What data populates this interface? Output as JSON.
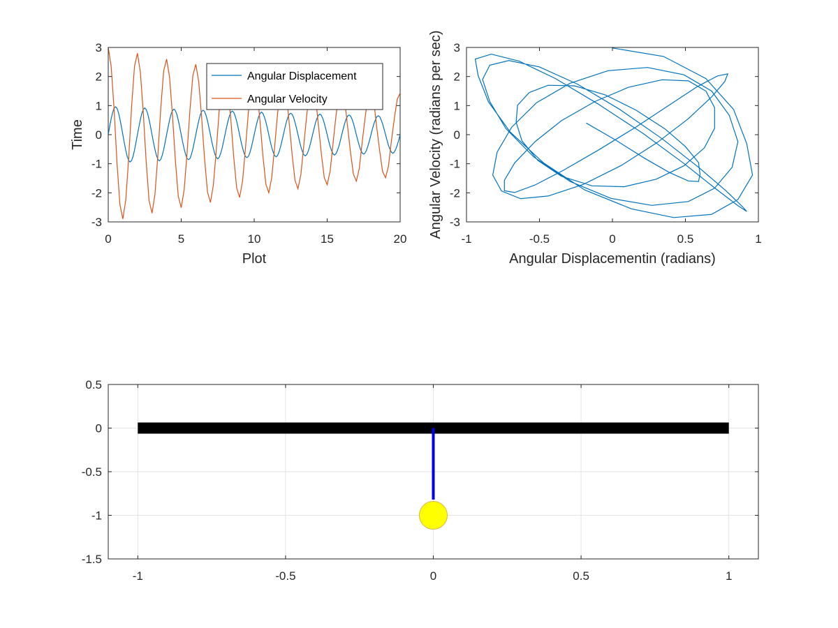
{
  "chart_data": [
    {
      "type": "line",
      "title": "",
      "xlabel": "Plot",
      "ylabel": "Time",
      "xlim": [
        0,
        20
      ],
      "ylim": [
        -3,
        3
      ],
      "xticks": [
        "0",
        "5",
        "10",
        "15",
        "20"
      ],
      "yticks": [
        "-3",
        "-2",
        "-1",
        "0",
        "1",
        "2",
        "3"
      ],
      "grid": false,
      "legend_position": "top-right",
      "series": [
        {
          "name": "Angular Displacement",
          "color": "#0072bd",
          "x": [
            0,
            0.1,
            0.2,
            0.3,
            0.4,
            0.5,
            0.6,
            0.7,
            0.8,
            0.9,
            1.0,
            1.1,
            1.2,
            1.3,
            1.4,
            1.5,
            1.6,
            1.7,
            1.8,
            1.9,
            2.0,
            2.1,
            2.2,
            2.3,
            2.4,
            2.5,
            2.6,
            2.7,
            2.8,
            2.9,
            3.0,
            3.1,
            3.2,
            3.3,
            3.4,
            3.5,
            3.6,
            3.7,
            3.8,
            3.9,
            4.0,
            4.1,
            4.2,
            4.3,
            4.4,
            4.5,
            4.6,
            4.7,
            4.8,
            4.9,
            5.0,
            5.1,
            5.2,
            5.3,
            5.4,
            5.5,
            5.6,
            5.7,
            5.8,
            5.9,
            6.0,
            6.1,
            6.2,
            6.3,
            6.4,
            6.5,
            6.6,
            6.7,
            6.8,
            6.9,
            7.0,
            7.1,
            7.2,
            7.3,
            7.4,
            7.5,
            7.6,
            7.7,
            7.8,
            7.9,
            8.0,
            8.1,
            8.2,
            8.3,
            8.4,
            8.5,
            8.6,
            8.7,
            8.8,
            8.9,
            9.0,
            9.1,
            9.2,
            9.3,
            9.4,
            9.5,
            9.6,
            9.7,
            9.8,
            9.9,
            10.0,
            10.1,
            10.2,
            10.3,
            10.4,
            10.5,
            10.6,
            10.7,
            10.8,
            10.9,
            11.0,
            11.1,
            11.2,
            11.3,
            11.4,
            11.5,
            11.6,
            11.7,
            11.8,
            11.9,
            12.0,
            12.1,
            12.2,
            12.3,
            12.4,
            12.5,
            12.6,
            12.7,
            12.8,
            12.9,
            13.0,
            13.1,
            13.2,
            13.3,
            13.4,
            13.5,
            13.6,
            13.7,
            13.8,
            13.9,
            14.0,
            14.1,
            14.2,
            14.3,
            14.4,
            14.5,
            14.6,
            14.7,
            14.8,
            14.9,
            15.0,
            15.1,
            15.2,
            15.3,
            15.4,
            15.5,
            15.6,
            15.7,
            15.8,
            15.9,
            16.0,
            16.1,
            16.2,
            16.3,
            16.4,
            16.5,
            16.6,
            16.7,
            16.8,
            16.9,
            17.0,
            17.1,
            17.2,
            17.3,
            17.4,
            17.5,
            17.6,
            17.7,
            17.8,
            17.9,
            18.0,
            18.1,
            18.2,
            18.3,
            18.4,
            18.5,
            18.6,
            18.7,
            18.8,
            18.9,
            19.0,
            19.1,
            19.2,
            19.3,
            19.4,
            19.5,
            19.6,
            19.7,
            19.8,
            19.9,
            20.0
          ],
          "values": [
            0.0,
            0.29,
            0.55,
            0.76,
            0.91,
            0.96,
            0.91,
            0.76,
            0.54,
            0.28,
            0.0,
            -0.28,
            -0.54,
            -0.75,
            -0.89,
            -0.94,
            -0.89,
            -0.75,
            -0.53,
            -0.27,
            0.0,
            0.27,
            0.52,
            0.73,
            0.87,
            0.92,
            0.87,
            0.73,
            0.52,
            0.27,
            0.0,
            -0.27,
            -0.51,
            -0.71,
            -0.85,
            -0.9,
            -0.85,
            -0.71,
            -0.51,
            -0.26,
            0.0,
            0.26,
            0.5,
            0.7,
            0.83,
            0.88,
            0.83,
            0.7,
            0.5,
            0.26,
            0.0,
            -0.26,
            -0.49,
            -0.68,
            -0.82,
            -0.86,
            -0.82,
            -0.68,
            -0.49,
            -0.25,
            0.0,
            0.25,
            0.48,
            0.67,
            0.8,
            0.84,
            0.8,
            0.67,
            0.48,
            0.25,
            0.0,
            -0.25,
            -0.47,
            -0.66,
            -0.78,
            -0.83,
            -0.78,
            -0.65,
            -0.47,
            -0.24,
            0.0,
            0.24,
            0.46,
            0.64,
            0.77,
            0.81,
            0.77,
            0.64,
            0.46,
            0.24,
            0.0,
            -0.24,
            -0.45,
            -0.63,
            -0.75,
            -0.79,
            -0.75,
            -0.63,
            -0.45,
            -0.23,
            0.0,
            0.23,
            0.44,
            0.61,
            0.73,
            0.78,
            0.73,
            0.61,
            0.44,
            0.23,
            0.0,
            -0.23,
            -0.44,
            -0.6,
            -0.72,
            -0.76,
            -0.72,
            -0.6,
            -0.43,
            -0.22,
            0.0,
            0.22,
            0.43,
            0.59,
            0.7,
            0.74,
            0.7,
            0.59,
            0.42,
            0.22,
            0.0,
            -0.22,
            -0.42,
            -0.58,
            -0.69,
            -0.73,
            -0.69,
            -0.57,
            -0.41,
            -0.21,
            0.0,
            0.21,
            0.41,
            0.56,
            0.67,
            0.71,
            0.67,
            0.56,
            0.4,
            0.21,
            0.0,
            -0.21,
            -0.4,
            -0.55,
            -0.66,
            -0.7,
            -0.66,
            -0.55,
            -0.4,
            -0.21,
            0.0,
            0.2,
            0.39,
            0.54,
            0.64,
            0.68,
            0.64,
            0.54,
            0.39,
            0.2,
            0.0,
            -0.2,
            -0.38,
            -0.53,
            -0.63,
            -0.67,
            -0.63,
            -0.53,
            -0.38,
            -0.2,
            0.0,
            0.2,
            0.37,
            0.51,
            0.62,
            0.65,
            0.62,
            0.51,
            0.37,
            0.19,
            0.0,
            -0.19,
            -0.37,
            -0.5,
            -0.6,
            -0.64,
            -0.6,
            -0.5,
            -0.36,
            -0.19,
            0.0
          ]
        },
        {
          "name": "Angular Velocity",
          "color": "#d95319",
          "x": [
            0.0,
            0.2,
            0.4,
            0.6,
            0.8,
            1.0,
            1.2,
            1.4,
            1.6,
            1.8,
            2.0,
            2.2,
            2.4,
            2.6,
            2.8,
            3.0,
            3.2,
            3.4,
            3.6,
            3.8,
            4.0,
            4.2,
            4.4,
            4.6,
            4.8,
            5.0,
            5.2,
            5.4,
            5.6,
            5.8,
            6.0,
            6.2,
            6.4,
            6.6,
            6.8,
            7.0,
            7.2,
            7.4,
            7.6,
            7.8,
            8.0,
            8.2,
            8.4,
            8.6,
            8.8,
            9.0,
            9.2,
            9.4,
            9.6,
            9.8,
            10.0,
            10.2,
            10.4,
            10.6,
            10.8,
            11.0,
            11.2,
            11.4,
            11.6,
            11.8,
            12.0,
            12.2,
            12.4,
            12.6,
            12.8,
            13.0,
            13.2,
            13.4,
            13.6,
            13.8,
            14.0,
            14.2,
            14.4,
            14.6,
            14.8,
            15.0,
            15.2,
            15.4,
            15.6,
            15.8,
            16.0,
            16.2,
            16.4,
            16.6,
            16.8,
            17.0,
            17.2,
            17.4,
            17.6,
            17.8,
            18.0,
            18.2,
            18.4,
            18.6,
            18.8,
            19.0,
            19.2,
            19.4,
            19.6,
            19.8,
            20.0
          ],
          "values": [
            3.0,
            2.35,
            0.87,
            -0.95,
            -2.4,
            -2.9,
            -2.25,
            -0.8,
            0.95,
            2.35,
            2.8,
            2.15,
            0.75,
            -0.92,
            -2.27,
            -2.7,
            -2.05,
            -0.7,
            0.9,
            2.2,
            2.6,
            1.98,
            0.66,
            -0.87,
            -2.12,
            -2.51,
            -1.9,
            -0.62,
            0.85,
            2.04,
            2.42,
            1.82,
            0.58,
            -0.82,
            -1.97,
            -2.33,
            -1.74,
            -0.54,
            0.8,
            1.9,
            2.25,
            1.67,
            0.5,
            -0.77,
            -1.83,
            -2.16,
            -1.6,
            -0.47,
            0.75,
            1.77,
            2.08,
            1.54,
            0.44,
            -0.73,
            -1.7,
            -2.0,
            -1.48,
            -0.41,
            0.7,
            1.64,
            1.93,
            1.42,
            0.38,
            -0.68,
            -1.58,
            -1.86,
            -1.36,
            -0.35,
            0.66,
            1.52,
            1.79,
            1.31,
            0.32,
            -0.64,
            -1.47,
            -1.72,
            -1.26,
            -0.3,
            0.62,
            1.41,
            1.66,
            1.21,
            0.27,
            -0.6,
            -1.36,
            -1.6,
            -1.16,
            -0.25,
            0.58,
            1.31,
            1.54,
            1.12,
            0.23,
            -0.56,
            -1.27,
            -1.48,
            -1.08,
            -0.21,
            0.54,
            1.22,
            1.43
          ]
        }
      ]
    },
    {
      "type": "line",
      "title": "",
      "xlabel": "Angular Displacementin (radians)",
      "ylabel": "Angular Velocity (radians per sec)",
      "xlim": [
        -1,
        1
      ],
      "ylim": [
        -3,
        3
      ],
      "xticks": [
        "-1",
        "-0.5",
        "0",
        "0.5",
        "1"
      ],
      "yticks": [
        "-3",
        "-2",
        "-1",
        "0",
        "1",
        "2",
        "3"
      ],
      "grid": false,
      "series": [
        {
          "color": "#0072bd",
          "x": [
            0.0,
            0.35,
            0.64,
            0.83,
            0.92,
            0.96,
            0.86,
            0.68,
            0.42,
            0.13,
            -0.19,
            -0.47,
            -0.7,
            -0.85,
            -0.92,
            -0.94,
            -0.83,
            -0.64,
            -0.39,
            -0.1,
            0.21,
            0.49,
            0.71,
            0.86,
            0.92,
            0.89,
            0.78,
            0.59,
            0.34,
            0.05,
            -0.24,
            -0.5,
            -0.71,
            -0.84,
            -0.89,
            -0.84,
            -0.73,
            -0.54,
            -0.29,
            -0.01,
            0.27,
            0.52,
            0.7,
            0.82,
            0.86,
            0.8,
            0.68,
            0.49,
            0.24,
            -0.03,
            -0.29,
            -0.52,
            -0.69,
            -0.79,
            -0.82,
            -0.76,
            -0.63,
            -0.44,
            -0.2,
            0.06,
            0.31,
            0.52,
            0.68,
            0.77,
            0.79,
            0.72,
            0.58,
            0.39,
            0.16,
            -0.09,
            -0.33,
            -0.53,
            -0.67,
            -0.74,
            -0.74,
            -0.67,
            -0.53,
            -0.35,
            -0.12,
            0.11,
            0.34,
            0.52,
            0.64,
            0.7,
            0.7,
            0.63,
            0.49,
            0.3,
            0.08,
            -0.14,
            -0.35,
            -0.51,
            -0.62,
            -0.66,
            -0.65,
            -0.57,
            -0.44,
            -0.26,
            -0.05,
            0.16,
            0.36,
            0.5,
            0.59,
            0.6,
            0.59,
            0.52,
            0.39,
            0.22,
            0.02,
            -0.18
          ],
          "values": [
            2.98,
            2.69,
            1.93,
            0.87,
            -0.31,
            -1.39,
            -2.23,
            -2.74,
            -2.85,
            -2.55,
            -1.9,
            -0.98,
            0.09,
            1.13,
            2.03,
            2.6,
            2.77,
            2.53,
            1.93,
            1.06,
            0.04,
            -0.99,
            -1.87,
            -2.44,
            -2.64,
            -2.47,
            -1.94,
            -1.12,
            -0.14,
            0.87,
            1.74,
            2.33,
            2.55,
            2.39,
            1.9,
            1.14,
            0.21,
            -0.76,
            -1.61,
            -2.19,
            -2.43,
            -2.3,
            -1.84,
            -1.12,
            -0.24,
            0.67,
            1.5,
            2.06,
            2.31,
            2.2,
            1.77,
            1.1,
            0.26,
            -0.6,
            -1.39,
            -1.94,
            -2.2,
            -2.11,
            -1.71,
            -1.06,
            -0.26,
            0.55,
            1.3,
            1.83,
            2.09,
            2.02,
            1.65,
            1.02,
            0.26,
            -0.51,
            -1.21,
            -1.73,
            -1.99,
            -1.93,
            -1.57,
            -0.97,
            -0.24,
            0.48,
            1.14,
            1.63,
            1.89,
            1.85,
            1.5,
            0.93,
            0.22,
            -0.45,
            -1.07,
            -1.53,
            -1.79,
            -1.76,
            -1.43,
            -0.89,
            -0.21,
            0.43,
            1.01,
            1.45,
            1.7,
            1.68,
            1.37,
            0.85,
            0.2,
            -0.41,
            -0.96,
            -1.37,
            -1.61,
            -1.59,
            -1.3,
            -0.81,
            -0.18,
            0.4
          ]
        }
      ]
    },
    {
      "type": "line",
      "title": "",
      "xlabel": "",
      "ylabel": "",
      "xlim": [
        -1.1,
        1.1
      ],
      "ylim": [
        -1.5,
        0.5
      ],
      "xticks": [
        "-1",
        "-0.5",
        "0",
        "0.5",
        "1"
      ],
      "yticks": [
        "-1.5",
        "-1",
        "-0.5",
        "0",
        "0.5"
      ],
      "grid": true,
      "series": [
        {
          "color": "#000000",
          "x": [
            -1,
            1
          ],
          "values": [
            0,
            0
          ]
        },
        {
          "color": "#0000e6",
          "x": [
            0,
            0
          ],
          "values": [
            0,
            -0.82
          ]
        },
        {
          "color": "#ffff00",
          "x": [
            0
          ],
          "values": [
            -1
          ]
        }
      ]
    }
  ]
}
